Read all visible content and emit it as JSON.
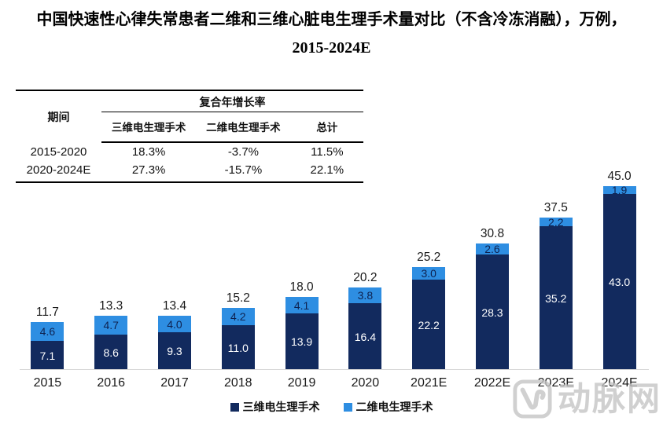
{
  "title": {
    "line1": "中国快速性心律失常患者二维和三维心脏电生理手术量对比（不含冷冻消融），万例，",
    "line2": "2015-2024E"
  },
  "table": {
    "period_header": "期间",
    "cagr_header": "复合年增长率",
    "columns": [
      "三维电生理手术",
      "二维电生理手术",
      "总计"
    ],
    "rows": [
      {
        "period": "2015-2020",
        "values": [
          "18.3%",
          "-3.7%",
          "11.5%"
        ]
      },
      {
        "period": "2020-2024E",
        "values": [
          "27.3%",
          "-15.7%",
          "22.1%"
        ]
      }
    ]
  },
  "chart_data": {
    "type": "bar",
    "stacked": true,
    "categories": [
      "2015",
      "2016",
      "2017",
      "2018",
      "2019",
      "2020",
      "2021E",
      "2022E",
      "2023E",
      "2024E"
    ],
    "series": [
      {
        "name": "三维电生理手术",
        "color": "#122a5e",
        "values": [
          7.1,
          8.6,
          9.3,
          11.0,
          13.9,
          16.4,
          22.2,
          28.3,
          35.2,
          43.0
        ]
      },
      {
        "name": "二维电生理手术",
        "color": "#2e8ee2",
        "values": [
          4.6,
          4.7,
          4.0,
          4.2,
          4.1,
          3.8,
          3.0,
          2.6,
          2.2,
          1.9
        ]
      }
    ],
    "totals": [
      11.7,
      13.3,
      13.4,
      15.2,
      18.0,
      20.2,
      25.2,
      30.8,
      37.5,
      45.0
    ],
    "ylim": [
      0,
      45
    ],
    "grid": false,
    "legend_position": "bottom",
    "xlabel": "",
    "ylabel": ""
  },
  "watermark": {
    "text": "动脉网",
    "color": "#c4c4c4"
  }
}
